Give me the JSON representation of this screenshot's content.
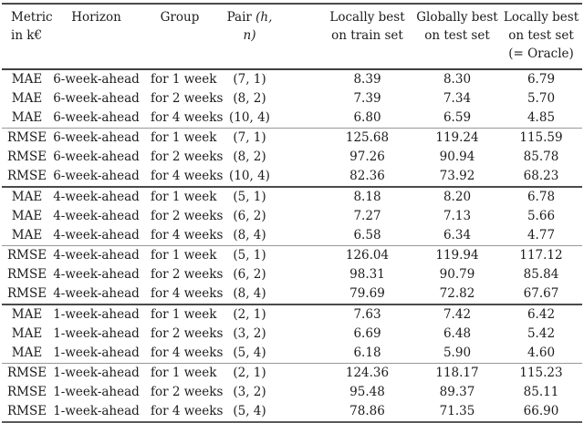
{
  "colors": {
    "text": "#1c1c1c",
    "rule_heavy": "#4a4a4a",
    "rule_light": "#999999",
    "background": "#ffffff"
  },
  "table": {
    "header": {
      "metric_line1": "Metric",
      "metric_line2": "in k€",
      "horizon": "Horizon",
      "group": "Group",
      "pair_label": "Pair",
      "pair_math": "(h, n)",
      "train_line1": "Locally best",
      "train_line2": "on train set",
      "test_line1": "Globally best",
      "test_line2": "on test set",
      "oracle_line1": "Locally best",
      "oracle_line2": "on test set",
      "oracle_line3": "(= Oracle)"
    },
    "column_keys": [
      "metric",
      "horizon",
      "group",
      "pair",
      "locally_best_train",
      "globally_best_test",
      "locally_best_test_oracle"
    ],
    "rows": [
      {
        "metric": "MAE",
        "horizon": "6-week-ahead",
        "group": "for 1 week",
        "pair": "(7, 1)",
        "locally_best_train": "8.39",
        "globally_best_test": "8.30",
        "locally_best_test_oracle": "6.79"
      },
      {
        "metric": "MAE",
        "horizon": "6-week-ahead",
        "group": "for 2 weeks",
        "pair": "(8, 2)",
        "locally_best_train": "7.39",
        "globally_best_test": "7.34",
        "locally_best_test_oracle": "5.70"
      },
      {
        "metric": "MAE",
        "horizon": "6-week-ahead",
        "group": "for 4 weeks",
        "pair": "(10, 4)",
        "locally_best_train": "6.80",
        "globally_best_test": "6.59",
        "locally_best_test_oracle": "4.85"
      },
      {
        "metric": "RMSE",
        "horizon": "6-week-ahead",
        "group": "for 1 week",
        "pair": "(7, 1)",
        "locally_best_train": "125.68",
        "globally_best_test": "119.24",
        "locally_best_test_oracle": "115.59"
      },
      {
        "metric": "RMSE",
        "horizon": "6-week-ahead",
        "group": "for 2 weeks",
        "pair": "(8, 2)",
        "locally_best_train": "97.26",
        "globally_best_test": "90.94",
        "locally_best_test_oracle": "85.78"
      },
      {
        "metric": "RMSE",
        "horizon": "6-week-ahead",
        "group": "for 4 weeks",
        "pair": "(10, 4)",
        "locally_best_train": "82.36",
        "globally_best_test": "73.92",
        "locally_best_test_oracle": "68.23"
      },
      {
        "metric": "MAE",
        "horizon": "4-week-ahead",
        "group": "for 1 week",
        "pair": "(5, 1)",
        "locally_best_train": "8.18",
        "globally_best_test": "8.20",
        "locally_best_test_oracle": "6.78"
      },
      {
        "metric": "MAE",
        "horizon": "4-week-ahead",
        "group": "for 2 weeks",
        "pair": "(6, 2)",
        "locally_best_train": "7.27",
        "globally_best_test": "7.13",
        "locally_best_test_oracle": "5.66"
      },
      {
        "metric": "MAE",
        "horizon": "4-week-ahead",
        "group": "for 4 weeks",
        "pair": "(8, 4)",
        "locally_best_train": "6.58",
        "globally_best_test": "6.34",
        "locally_best_test_oracle": "4.77"
      },
      {
        "metric": "RMSE",
        "horizon": "4-week-ahead",
        "group": "for 1 week",
        "pair": "(5, 1)",
        "locally_best_train": "126.04",
        "globally_best_test": "119.94",
        "locally_best_test_oracle": "117.12"
      },
      {
        "metric": "RMSE",
        "horizon": "4-week-ahead",
        "group": "for 2 weeks",
        "pair": "(6, 2)",
        "locally_best_train": "98.31",
        "globally_best_test": "90.79",
        "locally_best_test_oracle": "85.84"
      },
      {
        "metric": "RMSE",
        "horizon": "4-week-ahead",
        "group": "for 4 weeks",
        "pair": "(8, 4)",
        "locally_best_train": "79.69",
        "globally_best_test": "72.82",
        "locally_best_test_oracle": "67.67"
      },
      {
        "metric": "MAE",
        "horizon": "1-week-ahead",
        "group": "for 1 week",
        "pair": "(2, 1)",
        "locally_best_train": "7.63",
        "globally_best_test": "7.42",
        "locally_best_test_oracle": "6.42"
      },
      {
        "metric": "MAE",
        "horizon": "1-week-ahead",
        "group": "for 2 weeks",
        "pair": "(3, 2)",
        "locally_best_train": "6.69",
        "globally_best_test": "6.48",
        "locally_best_test_oracle": "5.42"
      },
      {
        "metric": "MAE",
        "horizon": "1-week-ahead",
        "group": "for 4 weeks",
        "pair": "(5, 4)",
        "locally_best_train": "6.18",
        "globally_best_test": "5.90",
        "locally_best_test_oracle": "4.60"
      },
      {
        "metric": "RMSE",
        "horizon": "1-week-ahead",
        "group": "for 1 week",
        "pair": "(2, 1)",
        "locally_best_train": "124.36",
        "globally_best_test": "118.17",
        "locally_best_test_oracle": "115.23"
      },
      {
        "metric": "RMSE",
        "horizon": "1-week-ahead",
        "group": "for 2 weeks",
        "pair": "(3, 2)",
        "locally_best_train": "95.48",
        "globally_best_test": "89.37",
        "locally_best_test_oracle": "85.11"
      },
      {
        "metric": "RMSE",
        "horizon": "1-week-ahead",
        "group": "for 4 weeks",
        "pair": "(5, 4)",
        "locally_best_train": "78.86",
        "globally_best_test": "71.35",
        "locally_best_test_oracle": "66.90"
      }
    ]
  }
}
